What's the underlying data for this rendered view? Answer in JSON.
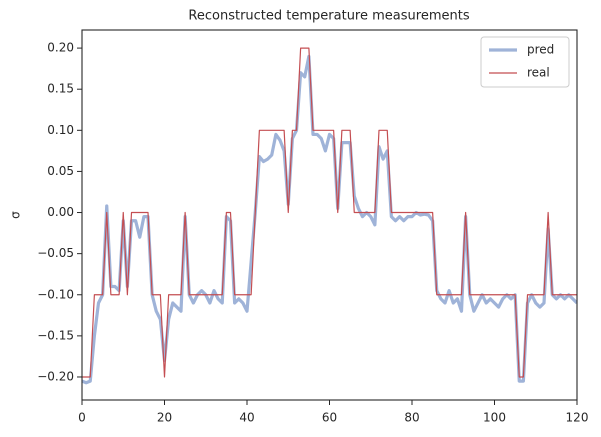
{
  "chart_data": {
    "type": "line",
    "title": "Reconstructed temperature measurements",
    "y_label": "σ",
    "x": [
      0,
      1,
      2,
      3,
      4,
      5,
      6,
      7,
      8,
      9,
      10,
      11,
      12,
      13,
      14,
      15,
      16,
      17,
      18,
      19,
      20,
      21,
      22,
      23,
      24,
      25,
      26,
      27,
      28,
      29,
      30,
      31,
      32,
      33,
      34,
      35,
      36,
      37,
      38,
      39,
      40,
      41,
      42,
      43,
      44,
      45,
      46,
      47,
      48,
      49,
      50,
      51,
      52,
      53,
      54,
      55,
      56,
      57,
      58,
      59,
      60,
      61,
      62,
      63,
      64,
      65,
      66,
      67,
      68,
      69,
      70,
      71,
      72,
      73,
      74,
      75,
      76,
      77,
      78,
      79,
      80,
      81,
      82,
      83,
      84,
      85,
      86,
      87,
      88,
      89,
      90,
      91,
      92,
      93,
      94,
      95,
      96,
      97,
      98,
      99,
      100,
      101,
      102,
      103,
      104,
      105,
      106,
      107,
      108,
      109,
      110,
      111,
      112,
      113,
      114,
      115,
      116,
      117,
      118,
      119,
      120
    ],
    "series": [
      {
        "name": "pred",
        "color": "#9fb3d8",
        "width": 3.2,
        "values": [
          -0.205,
          -0.207,
          -0.205,
          -0.15,
          -0.11,
          -0.1,
          0.008,
          -0.09,
          -0.09,
          -0.095,
          -0.01,
          -0.09,
          -0.01,
          -0.01,
          -0.03,
          -0.005,
          -0.005,
          -0.1,
          -0.12,
          -0.13,
          -0.18,
          -0.13,
          -0.11,
          -0.115,
          -0.12,
          -0.005,
          -0.1,
          -0.11,
          -0.1,
          -0.095,
          -0.1,
          -0.11,
          -0.095,
          -0.105,
          -0.11,
          -0.005,
          -0.01,
          -0.11,
          -0.105,
          -0.11,
          -0.12,
          -0.06,
          0.0,
          0.068,
          0.062,
          0.065,
          0.07,
          0.095,
          0.088,
          0.075,
          0.01,
          0.09,
          0.1,
          0.17,
          0.165,
          0.19,
          0.095,
          0.095,
          0.09,
          0.075,
          0.095,
          0.09,
          0.005,
          0.085,
          0.085,
          0.085,
          0.02,
          0.005,
          -0.005,
          0.0,
          -0.005,
          -0.015,
          0.08,
          0.065,
          0.075,
          -0.005,
          -0.01,
          -0.005,
          -0.01,
          -0.005,
          -0.005,
          0.0,
          -0.003,
          -0.002,
          -0.003,
          -0.01,
          -0.095,
          -0.105,
          -0.11,
          -0.095,
          -0.11,
          -0.105,
          -0.12,
          -0.005,
          -0.1,
          -0.12,
          -0.11,
          -0.1,
          -0.11,
          -0.105,
          -0.11,
          -0.115,
          -0.105,
          -0.1,
          -0.105,
          -0.1,
          -0.205,
          -0.205,
          -0.11,
          -0.1,
          -0.11,
          -0.115,
          -0.11,
          -0.02,
          -0.1,
          -0.105,
          -0.1,
          -0.105,
          -0.1,
          -0.105,
          -0.11
        ]
      },
      {
        "name": "real",
        "color": "#c44e52",
        "width": 1.2,
        "values": [
          -0.2,
          -0.2,
          -0.2,
          -0.1,
          -0.1,
          -0.1,
          0,
          -0.1,
          -0.1,
          -0.1,
          0,
          -0.1,
          0,
          0,
          0,
          0,
          0,
          -0.1,
          -0.1,
          -0.1,
          -0.2,
          -0.1,
          -0.1,
          -0.1,
          -0.1,
          0,
          -0.1,
          -0.1,
          -0.1,
          -0.1,
          -0.1,
          -0.1,
          -0.1,
          -0.1,
          -0.1,
          0,
          0,
          -0.1,
          -0.1,
          -0.1,
          -0.1,
          -0.1,
          0,
          0.1,
          0.1,
          0.1,
          0.1,
          0.1,
          0.1,
          0.1,
          0,
          0.1,
          0.1,
          0.2,
          0.2,
          0.2,
          0.1,
          0.1,
          0.1,
          0.1,
          0.1,
          0.1,
          0,
          0.1,
          0.1,
          0.1,
          0,
          0,
          0,
          0,
          0,
          0,
          0.1,
          0.1,
          0.1,
          0,
          0,
          0,
          0,
          0,
          0,
          0,
          0,
          0,
          0,
          0,
          -0.1,
          -0.1,
          -0.1,
          -0.1,
          -0.1,
          -0.1,
          -0.1,
          0,
          -0.1,
          -0.1,
          -0.1,
          -0.1,
          -0.1,
          -0.1,
          -0.1,
          -0.1,
          -0.1,
          -0.1,
          -0.1,
          -0.1,
          -0.2,
          -0.2,
          -0.1,
          -0.1,
          -0.1,
          -0.1,
          -0.1,
          0,
          -0.1,
          -0.1,
          -0.1,
          -0.1,
          -0.1,
          -0.1,
          -0.1
        ]
      }
    ],
    "xlim": [
      0,
      120
    ],
    "xticks": [
      0,
      20,
      40,
      60,
      80,
      100,
      120
    ],
    "ylim": [
      -0.228,
      0.222
    ],
    "yticks": [
      {
        "value": -0.2,
        "label": "−0.20"
      },
      {
        "value": -0.15,
        "label": "−0.15"
      },
      {
        "value": -0.1,
        "label": "−0.10"
      },
      {
        "value": -0.05,
        "label": "−0.05"
      },
      {
        "value": 0,
        "label": "0.00"
      },
      {
        "value": 0.05,
        "label": "0.05"
      },
      {
        "value": 0.1,
        "label": "0.10"
      },
      {
        "value": 0.15,
        "label": "0.15"
      },
      {
        "value": 0.2,
        "label": "0.20"
      }
    ],
    "grid": false,
    "legend": "upper right"
  }
}
